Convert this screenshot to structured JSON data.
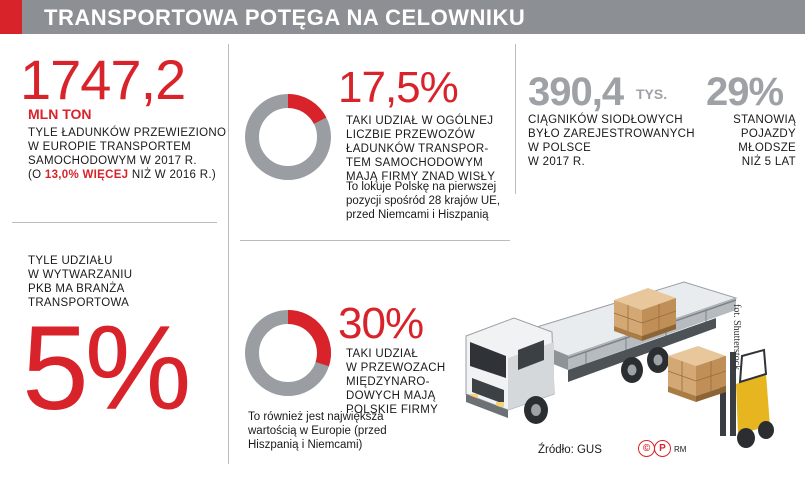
{
  "header": {
    "title": "TRANSPORTOWA POTĘGA NA CELOWNIKU"
  },
  "stat1": {
    "value": "1747,2",
    "unit": "MLN TON",
    "desc_line1": "TYLE ŁADUNKÓW PRZEWIEZIONO",
    "desc_line2": "W EUROPIE TRANSPORTEM",
    "desc_line3": "SAMOCHODOWYM W 2017 R.",
    "desc_pre": "(O ",
    "desc_highlight": "13,0%  WIĘCEJ",
    "desc_post": " NIŻ W 2016 R.)"
  },
  "stat2": {
    "value": "17,5%",
    "percent": 17.5,
    "desc_line1": "TAKI UDZIAŁ W OGÓLNEJ",
    "desc_line2": "LICZBIE PRZEWOZÓW",
    "desc_line3": "ŁADUNKÓW TRANSPOR-",
    "desc_line4": "TEM SAMOCHODOWYM",
    "desc_line5": "MAJĄ FIRMY ZNAD WISŁY",
    "note_line1": "To lokuje Polskę na pierwszej",
    "note_line2": "pozycji spośród 28 krajów UE,",
    "note_line3": "przed Niemcami i Hiszpanią"
  },
  "stat3": {
    "value": "390,4",
    "unit": "TYS.",
    "desc_line1": "CIĄGNIKÓW SIODŁOWYCH",
    "desc_line2": "BYŁO ZAREJESTROWANYCH",
    "desc_line3": "W POLSCE",
    "desc_line4": "W 2017 R."
  },
  "stat4": {
    "value": "29%",
    "desc_line1": "STANOWIĄ",
    "desc_line2": "POJAZDY",
    "desc_line3": "MŁODSZE",
    "desc_line4": "NIŻ 5 LAT"
  },
  "stat5": {
    "desc_line1": "TYLE UDZIAŁU",
    "desc_line2": "W WYTWARZANIU",
    "desc_line3": "PKB MA BRANŻA",
    "desc_line4": "TRANSPORTOWA",
    "value": "5%"
  },
  "stat6": {
    "value": "30%",
    "percent": 30,
    "desc_line1": "TAKI UDZIAŁ",
    "desc_line2": "W PRZEWOZACH",
    "desc_line3": "MIĘDZYNARO-",
    "desc_line4": "DOWYCH MAJĄ",
    "desc_line5": "POLSKIE FIRMY",
    "note_line1": "To również jest największa",
    "note_line2": "wartością w Europie (przed",
    "note_line3": "Hiszpanią i Niemcami)"
  },
  "footer": {
    "source": "Źródło: GUS",
    "credit_left": "©",
    "credit_right": "P",
    "author": "RM",
    "photo_credit": "fot. Shutterstock"
  },
  "colors": {
    "accent": "#d8232a",
    "gray": "#8c9094",
    "donut_track": "#9a9ea2"
  }
}
